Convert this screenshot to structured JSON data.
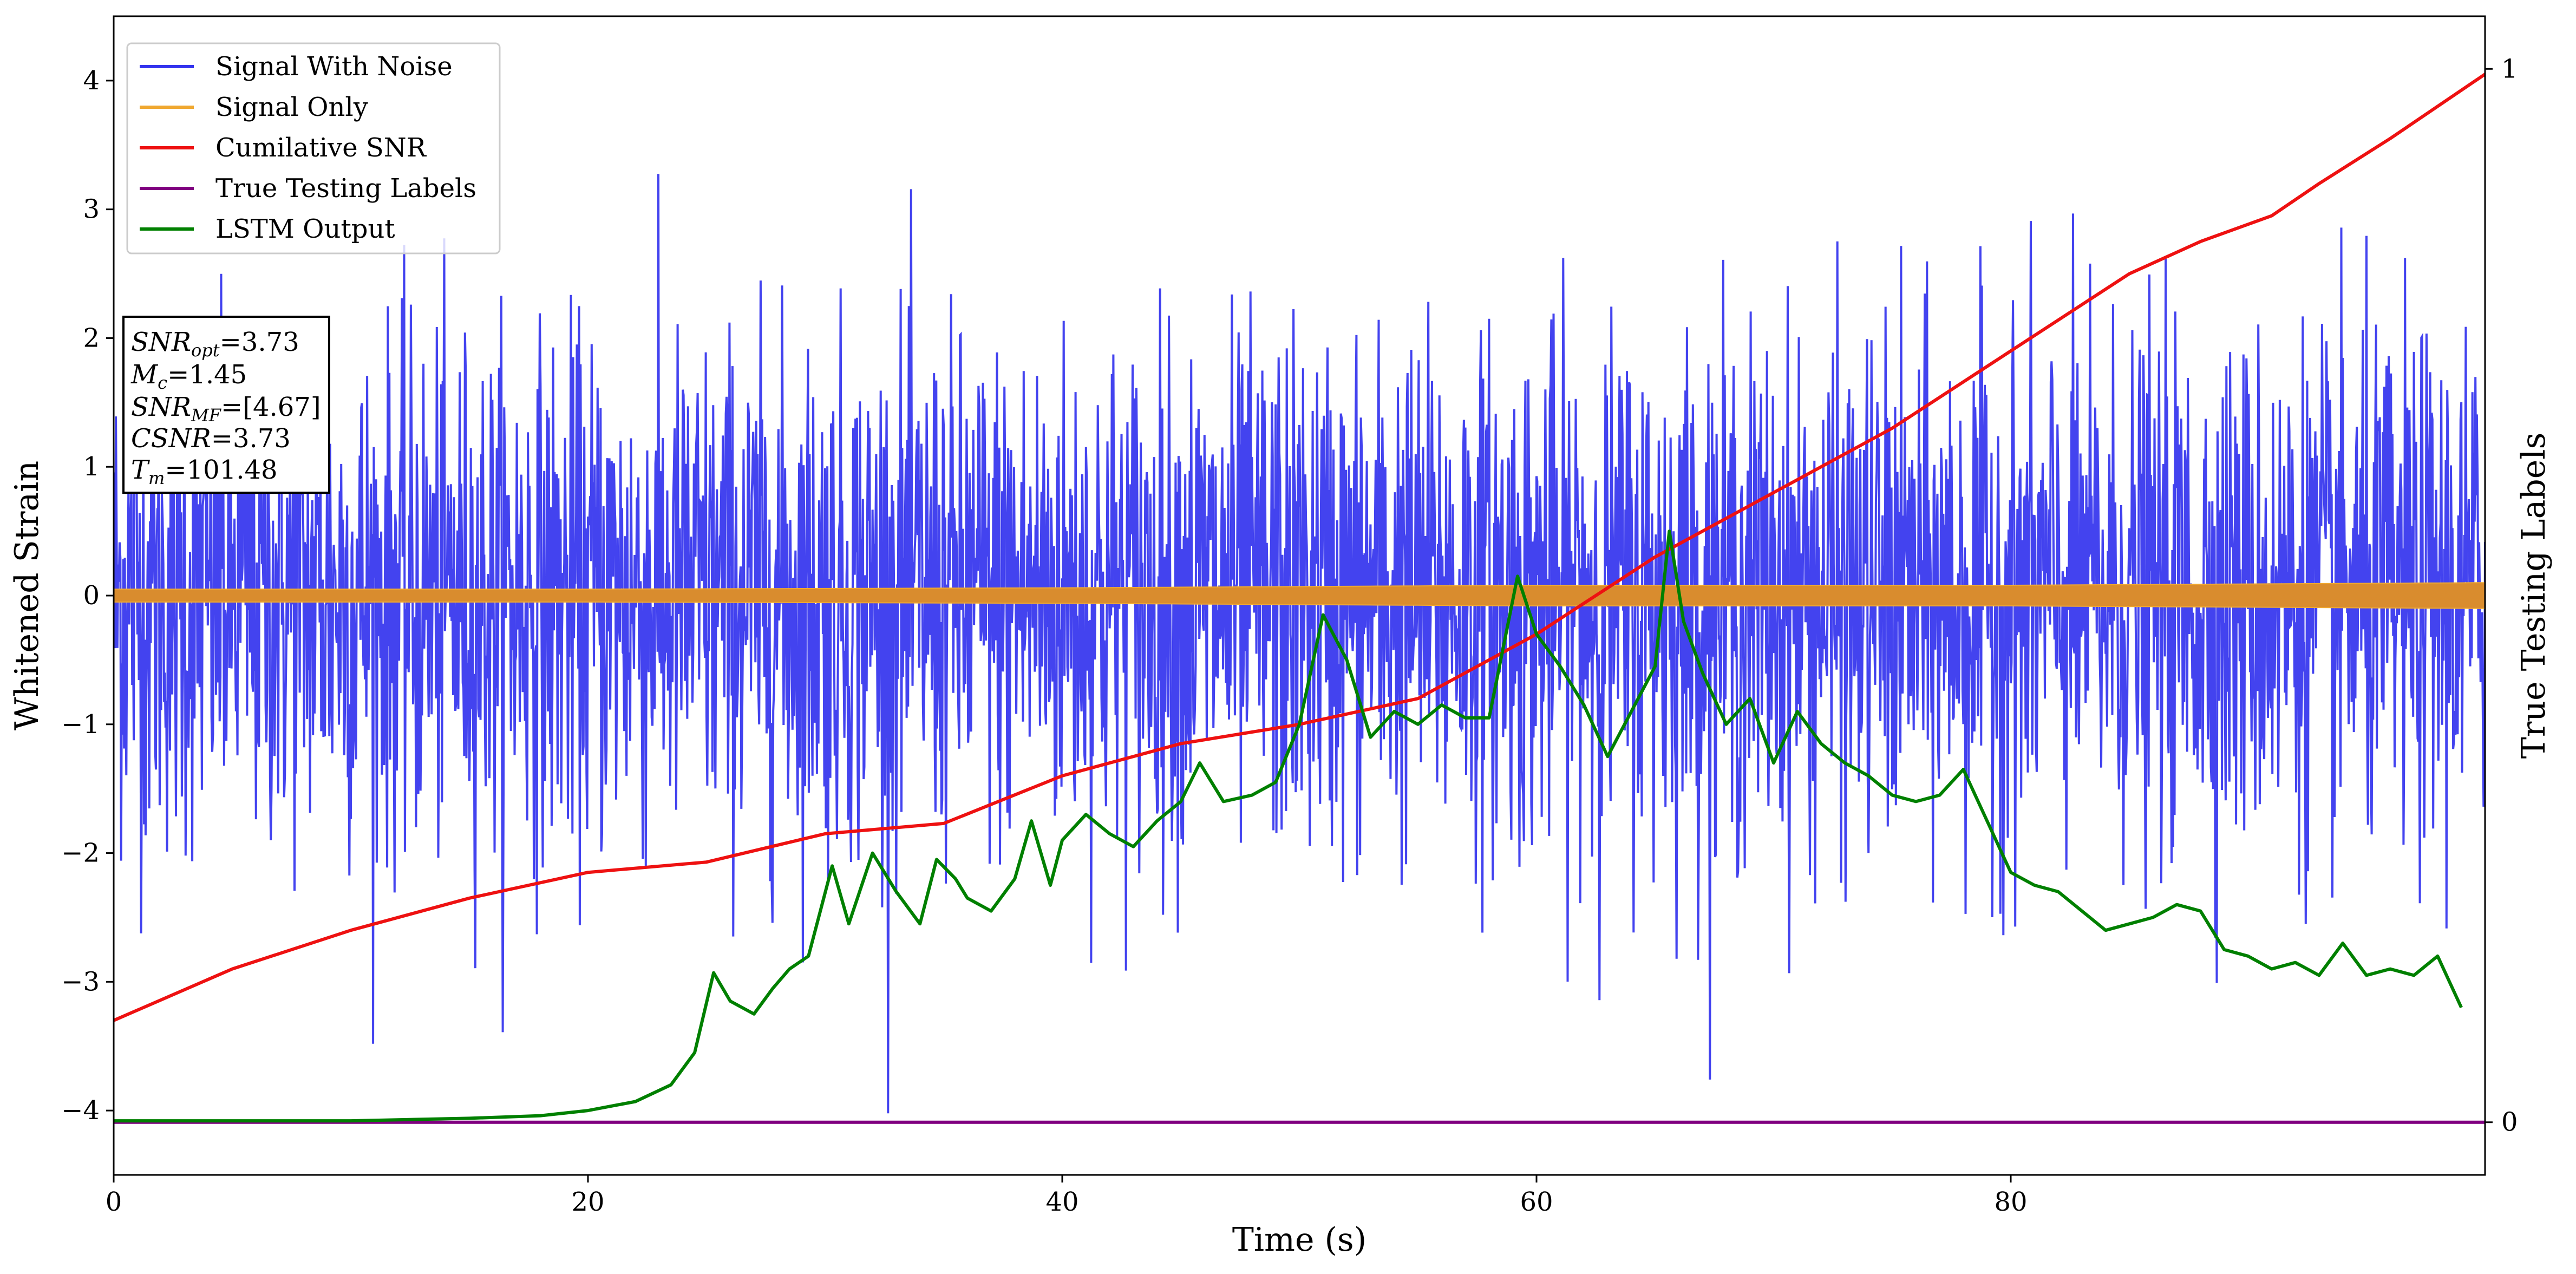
{
  "chart_data": {
    "type": "line",
    "title": "",
    "xlabel": "Time (s)",
    "ylabel": "Whitened Strain",
    "y2label": "True Testing Labels",
    "xlim": [
      0,
      100
    ],
    "ylim": [
      -4.5,
      4.5
    ],
    "y2lim": [
      -0.05,
      1.05
    ],
    "x_ticks": [
      0,
      20,
      40,
      60,
      80
    ],
    "y_ticks": [
      -4,
      -3,
      -2,
      -1,
      0,
      1,
      2,
      3,
      4
    ],
    "y2_ticks": [
      0,
      1
    ],
    "grid": false,
    "legend_position": "top-left",
    "info_box": [
      "SNRopt=3.73",
      "Mc=1.45",
      "SNRMF=[4.67]",
      "CSNR=3.73",
      "Tm=101.48"
    ],
    "series": [
      {
        "name": "Signal With Noise",
        "color": "#3333ee",
        "axis": "left",
        "style": "noise",
        "amplitude_std": 1.0,
        "x_range": [
          0,
          100
        ]
      },
      {
        "name": "Signal Only",
        "color": "#f0a830",
        "axis": "left",
        "style": "band",
        "x": [
          0,
          20,
          40,
          60,
          80,
          90,
          100
        ],
        "envelope": [
          0.05,
          0.05,
          0.06,
          0.08,
          0.08,
          0.09,
          0.1
        ]
      },
      {
        "name": "Cumilative SNR",
        "color": "#ee1111",
        "axis": "left",
        "x": [
          0,
          5,
          10,
          15,
          20,
          25,
          30,
          35,
          40,
          45,
          50,
          55,
          60,
          65,
          70,
          75,
          80,
          85,
          88,
          91,
          93,
          96,
          100
        ],
        "values": [
          -3.3,
          -2.9,
          -2.6,
          -2.35,
          -2.15,
          -2.07,
          -1.85,
          -1.77,
          -1.4,
          -1.15,
          -1.0,
          -0.8,
          -0.3,
          0.3,
          0.8,
          1.3,
          1.9,
          2.5,
          2.75,
          2.95,
          3.2,
          3.55,
          4.05
        ]
      },
      {
        "name": "True Testing Labels",
        "color": "#800080",
        "axis": "right",
        "x": [
          0,
          100
        ],
        "values": [
          0,
          0
        ]
      },
      {
        "name": "LSTM Output",
        "color": "#008000",
        "axis": "left",
        "x": [
          0,
          10,
          15,
          18,
          20,
          22,
          23.5,
          24.5,
          25.3,
          26,
          27,
          27.8,
          28.5,
          29.3,
          30.3,
          31,
          32,
          33,
          34,
          34.7,
          35.5,
          36,
          37,
          38,
          38.7,
          39.5,
          40,
          41,
          42,
          43,
          44,
          45,
          45.8,
          46.8,
          48,
          49,
          50,
          51,
          52,
          53,
          54,
          55,
          56,
          57,
          58,
          59.2,
          60,
          61,
          62,
          63,
          64,
          65,
          65.6,
          66.2,
          67,
          68,
          69,
          70,
          71,
          72,
          73,
          74,
          75,
          76,
          77,
          78,
          79,
          80,
          81,
          82,
          83,
          84,
          85,
          86,
          87,
          88,
          89,
          90,
          91,
          92,
          93,
          94,
          95,
          96,
          97,
          98,
          99
        ],
        "values": [
          -4.08,
          -4.08,
          -4.06,
          -4.04,
          -4.0,
          -3.93,
          -3.8,
          -3.55,
          -2.93,
          -3.15,
          -3.25,
          -3.05,
          -2.9,
          -2.8,
          -2.1,
          -2.55,
          -2.0,
          -2.3,
          -2.55,
          -2.05,
          -2.2,
          -2.35,
          -2.45,
          -2.2,
          -1.75,
          -2.25,
          -1.9,
          -1.7,
          -1.85,
          -1.95,
          -1.75,
          -1.6,
          -1.3,
          -1.6,
          -1.55,
          -1.45,
          -1.0,
          -0.15,
          -0.5,
          -1.1,
          -0.9,
          -1.0,
          -0.85,
          -0.95,
          -0.95,
          0.15,
          -0.3,
          -0.55,
          -0.85,
          -1.25,
          -0.9,
          -0.55,
          0.5,
          -0.2,
          -0.6,
          -1.0,
          -0.8,
          -1.3,
          -0.9,
          -1.15,
          -1.3,
          -1.4,
          -1.55,
          -1.6,
          -1.55,
          -1.35,
          -1.75,
          -2.15,
          -2.25,
          -2.3,
          -2.45,
          -2.6,
          -2.55,
          -2.5,
          -2.4,
          -2.45,
          -2.75,
          -2.8,
          -2.9,
          -2.85,
          -2.95,
          -2.7,
          -2.95,
          -2.9,
          -2.95,
          -2.8,
          -3.2
        ]
      }
    ]
  }
}
